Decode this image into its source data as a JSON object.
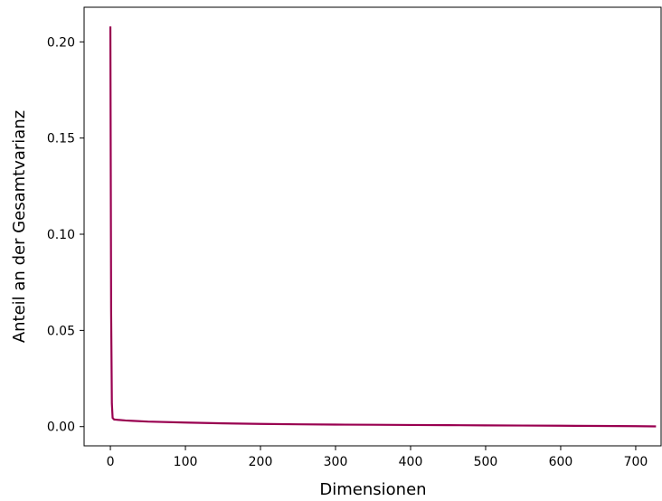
{
  "chart_data": {
    "type": "line",
    "title": "",
    "xlabel": "Dimensionen",
    "ylabel": "Anteil an der Gesamtvarianz",
    "xlim": [
      -35,
      735
    ],
    "ylim": [
      -0.01,
      0.218
    ],
    "grid": false,
    "legend": "none",
    "x_ticks": [
      0,
      100,
      200,
      300,
      400,
      500,
      600,
      700
    ],
    "x_tick_labels": [
      "0",
      "100",
      "200",
      "300",
      "400",
      "500",
      "600",
      "700"
    ],
    "y_ticks": [
      0.0,
      0.05,
      0.1,
      0.15,
      0.2
    ],
    "y_tick_labels": [
      "0.00",
      "0.05",
      "0.10",
      "0.15",
      "0.20"
    ],
    "series": [
      {
        "color": "#990050",
        "x": [
          0,
          1,
          2,
          3,
          5,
          10,
          20,
          30,
          50,
          100,
          150,
          200,
          250,
          300,
          350,
          400,
          450,
          500,
          550,
          600,
          650,
          700,
          727
        ],
        "y": [
          0.208,
          0.06,
          0.012,
          0.0045,
          0.0037,
          0.0035,
          0.0032,
          0.003,
          0.0026,
          0.0021,
          0.0017,
          0.0014,
          0.0012,
          0.00105,
          0.00095,
          0.00085,
          0.00075,
          0.00065,
          0.00055,
          0.00045,
          0.00035,
          0.00022,
          0.0001
        ]
      }
    ]
  }
}
